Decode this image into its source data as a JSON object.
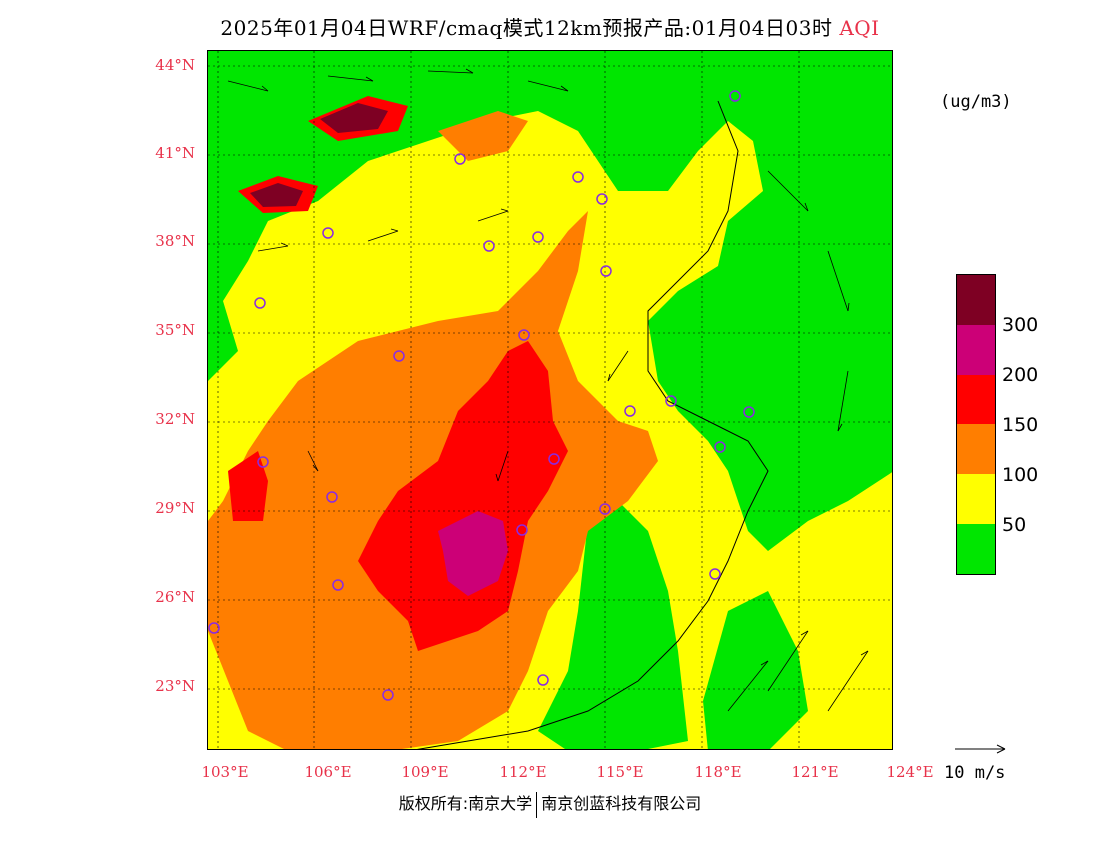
{
  "header": {
    "title_main": "2025年01月04日WRF/cmaq模式12km预报产品:01月04日03时",
    "title_var": "AQI"
  },
  "map": {
    "lat_labels": [
      "44°N",
      "41°N",
      "38°N",
      "35°N",
      "32°N",
      "29°N",
      "26°N",
      "23°N"
    ],
    "lon_labels": [
      "103°E",
      "106°E",
      "109°E",
      "112°E",
      "115°E",
      "118°E",
      "121°E",
      "124°E"
    ],
    "colors": {
      "green": "#00e600",
      "yellow": "#ffff00",
      "orange": "#ff7e00",
      "red": "#ff0000",
      "purple": "#cc0077",
      "maroon": "#7e0023"
    }
  },
  "legend": {
    "unit": "(ug/m3)",
    "ticks": [
      "300",
      "200",
      "150",
      "100",
      "50"
    ],
    "swatches": [
      "#7e0023",
      "#cc0077",
      "#ff0000",
      "#ff7e00",
      "#ffff00",
      "#00e600"
    ]
  },
  "wind_reference": {
    "label": "10 m/s"
  },
  "footer": {
    "left": "版权所有:南京大学",
    "right": "南京创蓝科技有限公司"
  }
}
